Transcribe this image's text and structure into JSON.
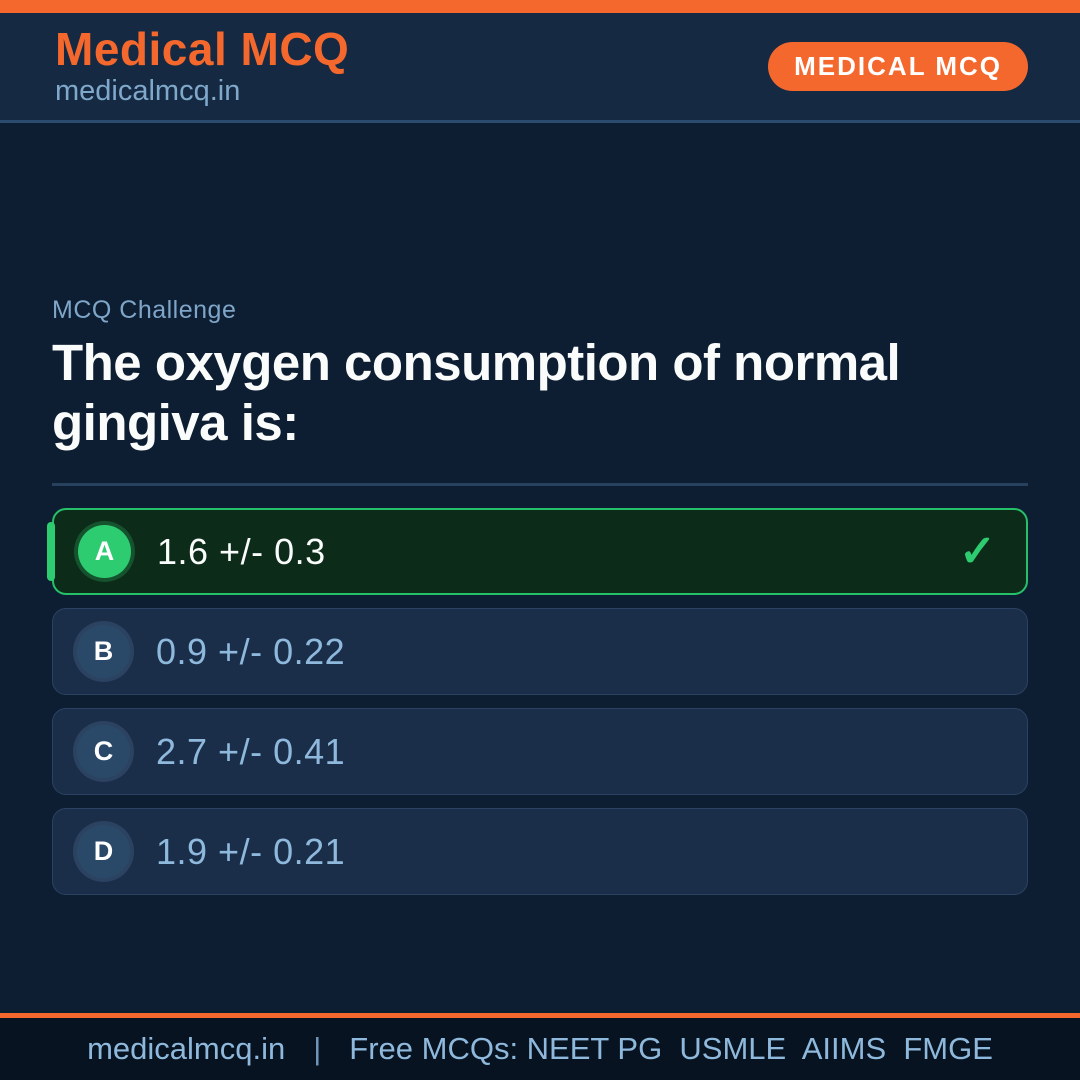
{
  "header": {
    "brand": "Medical MCQ",
    "site": "medicalmcq.in",
    "badge": "MEDICAL MCQ"
  },
  "question": {
    "eyebrow": "MCQ Challenge",
    "text": "The oxygen consumption of normal gingiva is:"
  },
  "options": [
    {
      "letter": "A",
      "text": "1.6 +/- 0.3",
      "correct": true
    },
    {
      "letter": "B",
      "text": "0.9 +/- 0.22",
      "correct": false
    },
    {
      "letter": "C",
      "text": "2.7 +/- 0.41",
      "correct": false
    },
    {
      "letter": "D",
      "text": "1.9 +/- 0.21",
      "correct": false
    }
  ],
  "icons": {
    "correct_check": "✓"
  },
  "footer": {
    "site": "medicalmcq.in",
    "separator": "|",
    "tagline": "Free MCQs: NEET PG  USMLE  AIIMS  FMGE"
  },
  "colors": {
    "accent_orange": "#F4682D",
    "correct_green": "#2ECC71",
    "header_bg": "#152A42",
    "main_bg": "#0D1E33",
    "option_bg": "#1B2E49",
    "correct_bg": "#0C2B19",
    "footer_bg": "#071320",
    "muted_blue_text": "#8FB9DC"
  }
}
